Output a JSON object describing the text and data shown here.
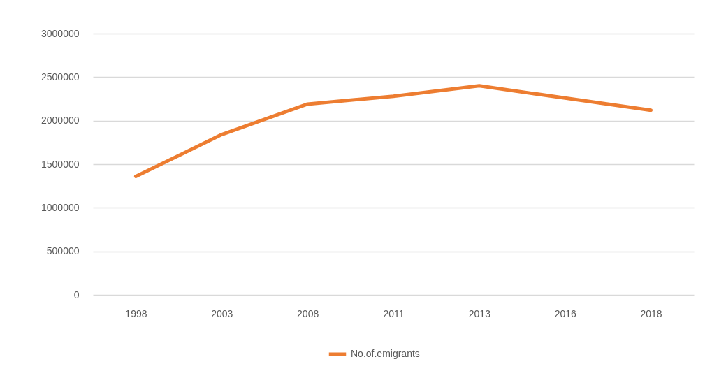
{
  "chart_data": {
    "type": "line",
    "categories": [
      "1998",
      "2003",
      "2008",
      "2011",
      "2013",
      "2016",
      "2018"
    ],
    "series": [
      {
        "name": "No.of.emigrants",
        "color": "#ed7d31",
        "values": [
          1360000,
          1840000,
          2190000,
          2280000,
          2400000,
          2260000,
          2120000
        ]
      }
    ],
    "ylim": [
      0,
      3000000
    ],
    "yticks": [
      0,
      500000,
      1000000,
      1500000,
      2000000,
      2500000,
      3000000
    ],
    "grid": "y",
    "legend": "bottom",
    "marker": "none",
    "line_style": "solid"
  }
}
